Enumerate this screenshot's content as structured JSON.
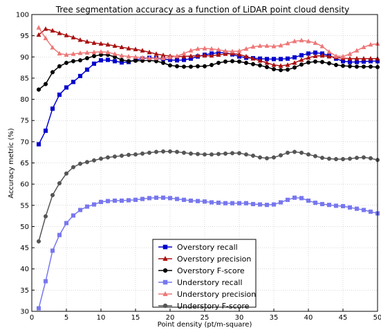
{
  "chart_data": {
    "type": "line",
    "title": "Tree segmentation accuracy as a function of LiDAR point cloud density",
    "xlabel": "Point density (pt/m-square)",
    "ylabel": "Accuracy metric (%)",
    "xlim": [
      0,
      50
    ],
    "ylim": [
      30,
      100
    ],
    "xticks": [
      0,
      5,
      10,
      15,
      20,
      25,
      30,
      35,
      40,
      45,
      50
    ],
    "yticks": [
      30,
      35,
      40,
      45,
      50,
      55,
      60,
      65,
      70,
      75,
      80,
      85,
      90,
      95,
      100
    ],
    "grid": true,
    "legend_position": "lower-center",
    "x": [
      1,
      2,
      3,
      4,
      5,
      6,
      7,
      8,
      9,
      10,
      11,
      12,
      13,
      14,
      15,
      16,
      17,
      18,
      19,
      20,
      21,
      22,
      23,
      24,
      25,
      26,
      27,
      28,
      29,
      30,
      31,
      32,
      33,
      34,
      35,
      36,
      37,
      38,
      39,
      40,
      41,
      42,
      43,
      44,
      45,
      46,
      47,
      48,
      49,
      50
    ],
    "series": [
      {
        "name": "Overstory recall",
        "color": "#0000cc",
        "marker": "square",
        "values": [
          69.4,
          72.6,
          77.8,
          81.1,
          82.8,
          84.1,
          85.5,
          87.0,
          88.4,
          89.2,
          89.3,
          89.0,
          88.7,
          88.8,
          89.3,
          89.6,
          89.8,
          89.7,
          89.5,
          89.3,
          89.2,
          89.3,
          89.6,
          90.1,
          90.5,
          90.8,
          91.0,
          91.0,
          90.6,
          90.1,
          89.8,
          89.7,
          89.6,
          89.5,
          89.5,
          89.5,
          89.6,
          89.9,
          90.4,
          90.8,
          91.0,
          90.8,
          90.3,
          89.6,
          89.0,
          88.8,
          88.8,
          88.9,
          89.0,
          89.0
        ]
      },
      {
        "name": "Overstory precision",
        "color": "#aa1111",
        "marker": "triangle",
        "values": [
          95.2,
          96.6,
          96.2,
          95.6,
          95.1,
          94.6,
          94.0,
          93.6,
          93.3,
          93.1,
          92.9,
          92.6,
          92.3,
          92.0,
          91.8,
          91.5,
          91.1,
          90.7,
          90.4,
          90.2,
          90.1,
          90.1,
          90.2,
          90.3,
          90.3,
          90.3,
          90.5,
          90.7,
          90.8,
          90.6,
          90.1,
          89.6,
          89.1,
          88.6,
          88.1,
          87.9,
          88.1,
          88.6,
          89.3,
          89.8,
          90.2,
          90.3,
          90.1,
          89.9,
          89.7,
          89.6,
          89.6,
          89.6,
          89.6,
          89.6
        ]
      },
      {
        "name": "Overstory F-score",
        "color": "#000000",
        "marker": "circle",
        "values": [
          82.3,
          83.6,
          86.4,
          87.8,
          88.6,
          89.0,
          89.2,
          89.7,
          90.2,
          90.5,
          90.5,
          90.0,
          89.3,
          89.0,
          89.1,
          89.1,
          89.2,
          89.0,
          88.6,
          88.0,
          87.8,
          87.7,
          87.7,
          87.8,
          87.8,
          88.1,
          88.6,
          88.9,
          89.0,
          88.9,
          88.6,
          88.3,
          88.0,
          87.6,
          87.1,
          86.9,
          87.0,
          87.5,
          88.2,
          88.7,
          88.9,
          88.8,
          88.5,
          88.1,
          87.9,
          87.8,
          87.7,
          87.7,
          87.7,
          87.6
        ]
      },
      {
        "name": "Understory recall",
        "color": "#7777ee",
        "marker": "square",
        "values": [
          30.7,
          37.1,
          44.3,
          48.0,
          50.8,
          52.6,
          53.9,
          54.7,
          55.2,
          55.8,
          56.0,
          56.1,
          56.1,
          56.2,
          56.3,
          56.5,
          56.7,
          56.8,
          56.8,
          56.7,
          56.5,
          56.3,
          56.1,
          56.0,
          55.9,
          55.7,
          55.6,
          55.5,
          55.5,
          55.5,
          55.5,
          55.3,
          55.2,
          55.1,
          55.2,
          55.7,
          56.3,
          56.8,
          56.7,
          56.1,
          55.6,
          55.3,
          55.1,
          54.9,
          54.8,
          54.5,
          54.2,
          53.9,
          53.5,
          53.1
        ]
      },
      {
        "name": "Understory precision",
        "color": "#ee7777",
        "marker": "triangle",
        "values": [
          96.9,
          94.4,
          92.2,
          90.8,
          90.5,
          90.7,
          90.9,
          91.0,
          91.1,
          91.2,
          91.1,
          90.7,
          90.3,
          90.1,
          90.0,
          89.8,
          89.7,
          89.7,
          89.7,
          89.9,
          90.2,
          90.8,
          91.5,
          91.9,
          92.0,
          91.9,
          91.7,
          91.4,
          91.3,
          91.4,
          91.9,
          92.4,
          92.6,
          92.6,
          92.5,
          92.7,
          93.2,
          93.7,
          93.9,
          93.7,
          93.3,
          92.5,
          91.2,
          90.2,
          90.1,
          90.7,
          91.5,
          92.3,
          92.9,
          93.1
        ]
      },
      {
        "name": "Understory F-score",
        "color": "#555555",
        "marker": "circle",
        "values": [
          46.5,
          52.4,
          57.4,
          60.2,
          62.5,
          64.0,
          64.8,
          65.2,
          65.6,
          66.0,
          66.3,
          66.5,
          66.7,
          66.9,
          67.0,
          67.2,
          67.4,
          67.6,
          67.7,
          67.7,
          67.6,
          67.4,
          67.2,
          67.1,
          67.0,
          67.0,
          67.1,
          67.2,
          67.3,
          67.3,
          67.0,
          66.7,
          66.3,
          66.1,
          66.3,
          66.8,
          67.4,
          67.6,
          67.4,
          67.0,
          66.6,
          66.2,
          66.0,
          65.9,
          65.9,
          66.0,
          66.2,
          66.3,
          66.1,
          65.7
        ]
      }
    ]
  }
}
